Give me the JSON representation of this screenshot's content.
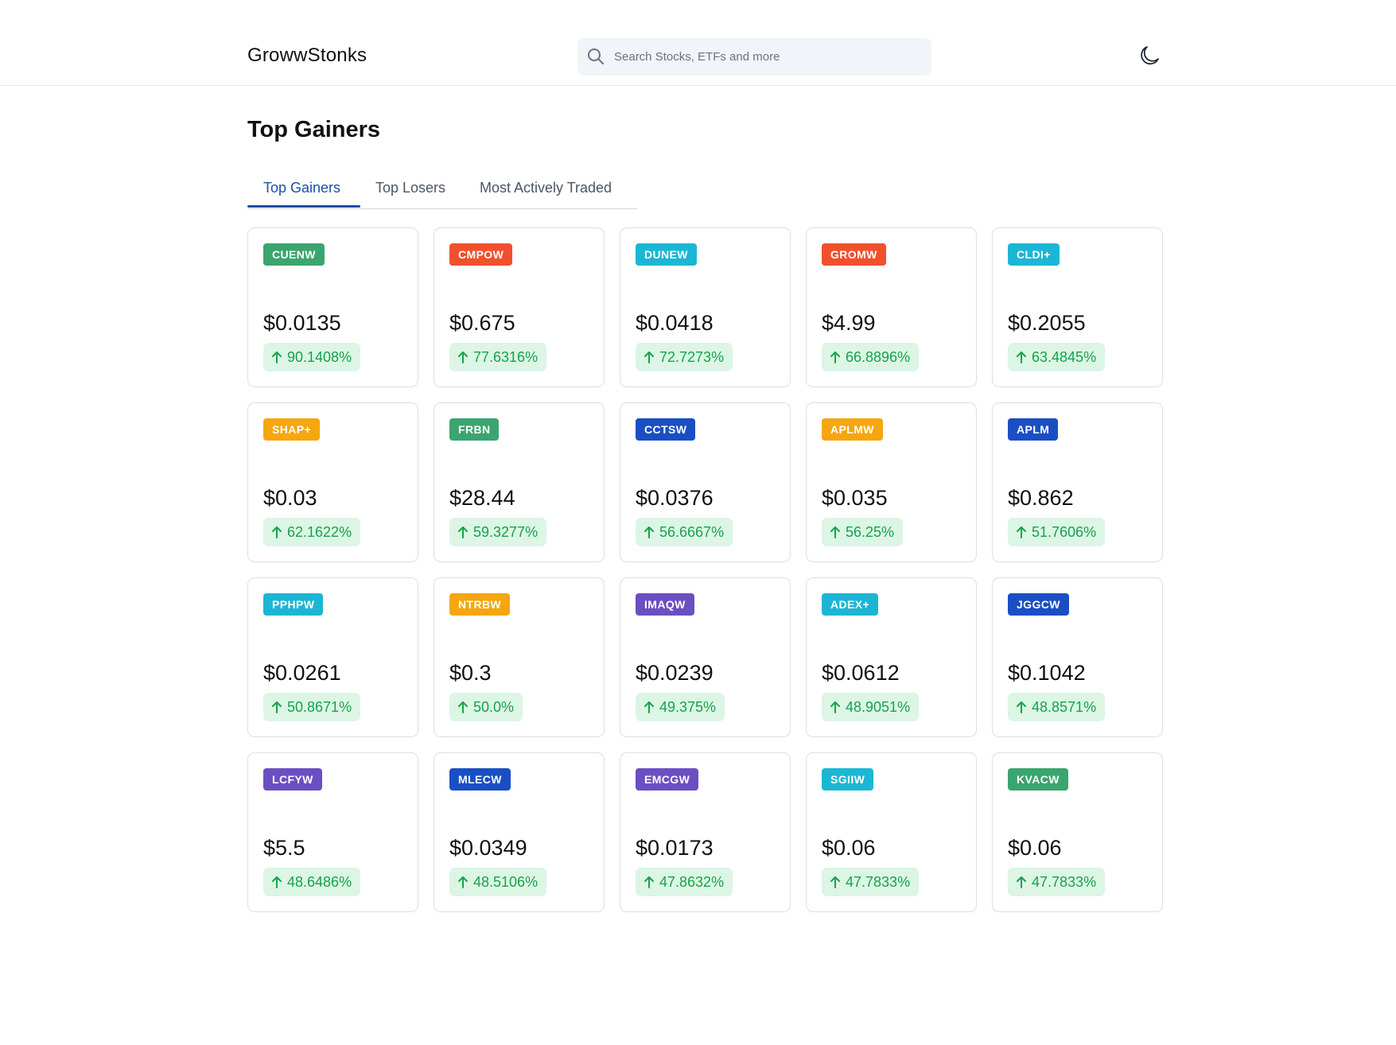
{
  "header": {
    "logo": "GrowwStonks",
    "search_placeholder": "Search Stocks, ETFs and more"
  },
  "page": {
    "title": "Top Gainers"
  },
  "tabs": [
    {
      "label": "Top Gainers",
      "active": true
    },
    {
      "label": "Top Losers",
      "active": false
    },
    {
      "label": "Most Actively Traded",
      "active": false
    }
  ],
  "stocks": [
    {
      "ticker": "CUENW",
      "color": "#3aa56f",
      "price": "$0.0135",
      "change": "90.1408%"
    },
    {
      "ticker": "CMPOW",
      "color": "#f0502e",
      "price": "$0.675",
      "change": "77.6316%"
    },
    {
      "ticker": "DUNEW",
      "color": "#1cb6d4",
      "price": "$0.0418",
      "change": "72.7273%"
    },
    {
      "ticker": "GROMW",
      "color": "#f0502e",
      "price": "$4.99",
      "change": "66.8896%"
    },
    {
      "ticker": "CLDI+",
      "color": "#1cb6d4",
      "price": "$0.2055",
      "change": "63.4845%"
    },
    {
      "ticker": "SHAP+",
      "color": "#f5a610",
      "price": "$0.03",
      "change": "62.1622%"
    },
    {
      "ticker": "FRBN",
      "color": "#3aa56f",
      "price": "$28.44",
      "change": "59.3277%"
    },
    {
      "ticker": "CCTSW",
      "color": "#1a4fc4",
      "price": "$0.0376",
      "change": "56.6667%"
    },
    {
      "ticker": "APLMW",
      "color": "#f5a610",
      "price": "$0.035",
      "change": "56.25%"
    },
    {
      "ticker": "APLM",
      "color": "#1a4fc4",
      "price": "$0.862",
      "change": "51.7606%"
    },
    {
      "ticker": "PPHPW",
      "color": "#1cb6d4",
      "price": "$0.0261",
      "change": "50.8671%"
    },
    {
      "ticker": "NTRBW",
      "color": "#f5a610",
      "price": "$0.3",
      "change": "50.0%"
    },
    {
      "ticker": "IMAQW",
      "color": "#6b4fc2",
      "price": "$0.0239",
      "change": "49.375%"
    },
    {
      "ticker": "ADEX+",
      "color": "#1cb6d4",
      "price": "$0.0612",
      "change": "48.9051%"
    },
    {
      "ticker": "JGGCW",
      "color": "#1a4fc4",
      "price": "$0.1042",
      "change": "48.8571%"
    },
    {
      "ticker": "LCFYW",
      "color": "#6b4fc2",
      "price": "$5.5",
      "change": "48.6486%"
    },
    {
      "ticker": "MLECW",
      "color": "#1a4fc4",
      "price": "$0.0349",
      "change": "48.5106%"
    },
    {
      "ticker": "EMCGW",
      "color": "#6b4fc2",
      "price": "$0.0173",
      "change": "47.8632%"
    },
    {
      "ticker": "SGIIW",
      "color": "#1cb6d4",
      "price": "$0.06",
      "change": "47.7833%"
    },
    {
      "ticker": "KVACW",
      "color": "#3aa56f",
      "price": "$0.06",
      "change": "47.7833%"
    }
  ],
  "icons": {
    "search": "search-icon",
    "theme": "moon-icon",
    "change": "arrow-up-icon"
  }
}
